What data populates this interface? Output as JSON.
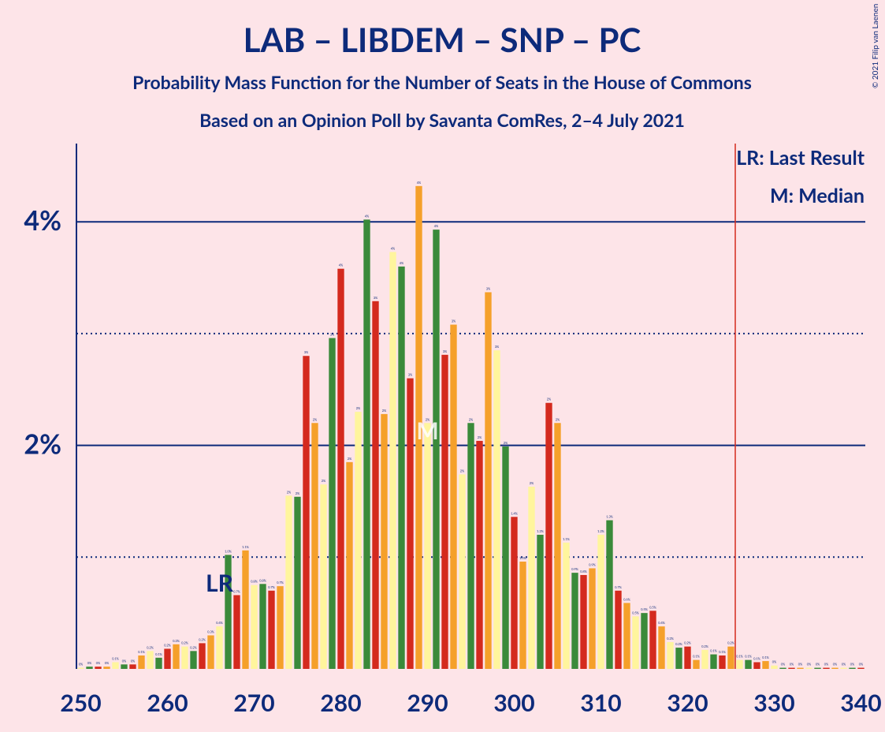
{
  "chart_data": {
    "type": "bar",
    "title": "LAB – LIBDEM – SNP – PC",
    "subtitle": "Probability Mass Function for the Number of Seats in the House of Commons",
    "subtitle2": "Based on an Opinion Poll by Savanta ComRes, 2–4 July 2021",
    "copyright": "© 2021 Filip van Laenen",
    "legend": [
      "LR: Last Result",
      "M: Median"
    ],
    "colors": [
      "#fff59d",
      "#3a8a3a",
      "#d42a1e",
      "#f5a02a"
    ],
    "x": [
      250,
      251,
      252,
      253,
      254,
      255,
      256,
      257,
      258,
      259,
      260,
      261,
      262,
      263,
      264,
      265,
      266,
      267,
      268,
      269,
      270,
      271,
      272,
      273,
      274,
      275,
      276,
      277,
      278,
      279,
      280,
      281,
      282,
      283,
      284,
      285,
      286,
      287,
      288,
      289,
      290,
      291,
      292,
      293,
      294,
      295,
      296,
      297,
      298,
      299,
      300,
      301,
      302,
      303,
      304,
      305,
      306,
      307,
      308,
      309,
      310,
      311,
      312,
      313,
      314,
      315,
      316,
      317,
      318,
      319,
      320,
      321,
      322,
      323,
      324,
      325,
      326,
      327,
      328,
      329,
      330,
      331,
      332,
      333,
      334,
      335,
      336,
      337,
      338,
      339,
      340
    ],
    "values": [
      0.01,
      0.02,
      0.02,
      0.02,
      0.06,
      0.04,
      0.04,
      0.12,
      0.16,
      0.1,
      0.18,
      0.22,
      0.2,
      0.16,
      0.23,
      0.3,
      0.38,
      1.02,
      0.66,
      1.06,
      0.75,
      0.76,
      0.7,
      0.74,
      1.55,
      1.54,
      2.8,
      2.2,
      1.65,
      2.96,
      3.58,
      1.85,
      2.3,
      4.02,
      3.29,
      2.28,
      3.73,
      3.6,
      2.6,
      4.32,
      2.2,
      3.93,
      2.81,
      3.08,
      1.74,
      2.2,
      2.04,
      3.37,
      2.85,
      1.99,
      1.36,
      0.96,
      1.63,
      1.2,
      2.38,
      2.2,
      1.13,
      0.86,
      0.84,
      0.9,
      1.2,
      1.33,
      0.7,
      0.59,
      0.47,
      0.5,
      0.52,
      0.38,
      0.24,
      0.19,
      0.2,
      0.08,
      0.17,
      0.13,
      0.12,
      0.2,
      0.08,
      0.08,
      0.06,
      0.07,
      0.03,
      0.01,
      0.01,
      0.01,
      0.01,
      0.01,
      0.01,
      0.01,
      0.01,
      0.01,
      0.01
    ],
    "value_labels": [
      "0%",
      "0%",
      "0%",
      "0%",
      "0.1%",
      "0%",
      "0%",
      "0.1%",
      "0.2%",
      "0.1%",
      "0.2%",
      "0.2%",
      "0.2%",
      "0.2%",
      "0.2%",
      "0.3%",
      "0.4%",
      "1.0%",
      "0.7%",
      "1.1%",
      "0.8%",
      "0.8%",
      "0.7%",
      "0.7%",
      "2%",
      "2%",
      "3%",
      "2%",
      "2%",
      "3%",
      "4%",
      "2%",
      "2%",
      "4%",
      "3%",
      "2%",
      "4%",
      "4%",
      "3%",
      "4%",
      "2%",
      "4%",
      "3%",
      "3%",
      "2%",
      "2%",
      "2%",
      "3%",
      "3%",
      "2%",
      "1.4%",
      "1.0%",
      "2%",
      "1.2%",
      "2%",
      "2%",
      "1.1%",
      "0.9%",
      "0.8%",
      "0.9%",
      "1.2%",
      "1.3%",
      "0.7%",
      "0.6%",
      "0.5%",
      "0.5%",
      "0.5%",
      "0.4%",
      "0.2%",
      "0.2%",
      "0.2%",
      "0.1%",
      "0.2%",
      "0.1%",
      "0.1%",
      "0.2%",
      "0.1%",
      "0.1%",
      "0.1%",
      "0.1%",
      "0%",
      "0%",
      "0%",
      "0%",
      "0%",
      "0%",
      "0%",
      "0%",
      "0%",
      "0%",
      "0%"
    ],
    "xlim": [
      249.5,
      340.5
    ],
    "xticks": [
      250,
      260,
      270,
      280,
      290,
      300,
      310,
      320,
      330,
      340
    ],
    "ylim": [
      0,
      4.7
    ],
    "yticks": [
      {
        "value": 2,
        "label": "2%"
      },
      {
        "value": 4,
        "label": "4%"
      }
    ],
    "minor_yticks": [
      1,
      3
    ],
    "last_result_line": 325.5,
    "lr_label": {
      "text": "LR",
      "x": 266
    },
    "median_label": {
      "text": "M",
      "x": 290
    }
  }
}
